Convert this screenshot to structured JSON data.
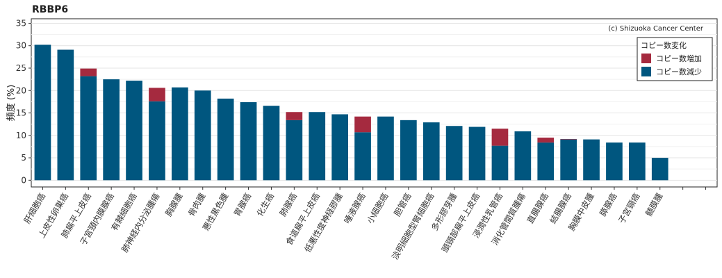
{
  "page_title": "RBBP6",
  "credit": "(c) Shizuoka Cancer Center",
  "chart_data": {
    "type": "bar",
    "stacked": true,
    "title": "RBBP6",
    "ylabel": "頻度 (%)",
    "xlabel": "",
    "ylim": [
      -1.5,
      36
    ],
    "yticks": [
      0,
      5,
      10,
      15,
      20,
      25,
      30,
      35
    ],
    "grid": true,
    "legend": {
      "title": "コピー数変化",
      "position": "top-right"
    },
    "categories": [
      "肝細胞癌",
      "上皮性卵巣癌",
      "肺扁平上皮癌",
      "子宮頸内膜腺癌",
      "有棘細胞癌",
      "肺神経内分泌腫瘍",
      "胸腺腫",
      "骨肉腫",
      "悪性黒色腫",
      "胃腺癌",
      "化生癌",
      "肺腺癌",
      "食道扁平上皮癌",
      "低悪性度神経膠腫",
      "唾液腺癌",
      "小細胞癌",
      "胆管癌",
      "淡明細胞型腎細胞癌",
      "多形膠芽腫",
      "頭頸部扁平上皮癌",
      "浸潤性乳管癌",
      "消化管間質腫瘍",
      "直腸腺癌",
      "結腸腺癌",
      "胸膜中皮腫",
      "膵腺癌",
      "子宮頸癌",
      "髄膜腫",
      "",
      ""
    ],
    "series": [
      {
        "name": "コピー数減少",
        "color": "#00567f",
        "values": [
          30.2,
          29.1,
          23.2,
          22.5,
          22.2,
          17.6,
          20.7,
          20.0,
          18.2,
          17.4,
          16.6,
          13.4,
          15.2,
          14.7,
          10.7,
          14.2,
          13.4,
          12.9,
          12.1,
          11.9,
          7.7,
          10.9,
          8.4,
          9.1,
          9.1,
          8.4,
          8.4,
          5.0,
          0,
          0
        ]
      },
      {
        "name": "コピー数増加",
        "color": "#a52a3f",
        "values": [
          0,
          0,
          1.7,
          0,
          0,
          3.0,
          0,
          0,
          0,
          0,
          0,
          1.8,
          0,
          0,
          3.5,
          0,
          0,
          0,
          0,
          0,
          3.8,
          0,
          1.1,
          0.1,
          0,
          0,
          0,
          0,
          0,
          0
        ]
      }
    ]
  }
}
